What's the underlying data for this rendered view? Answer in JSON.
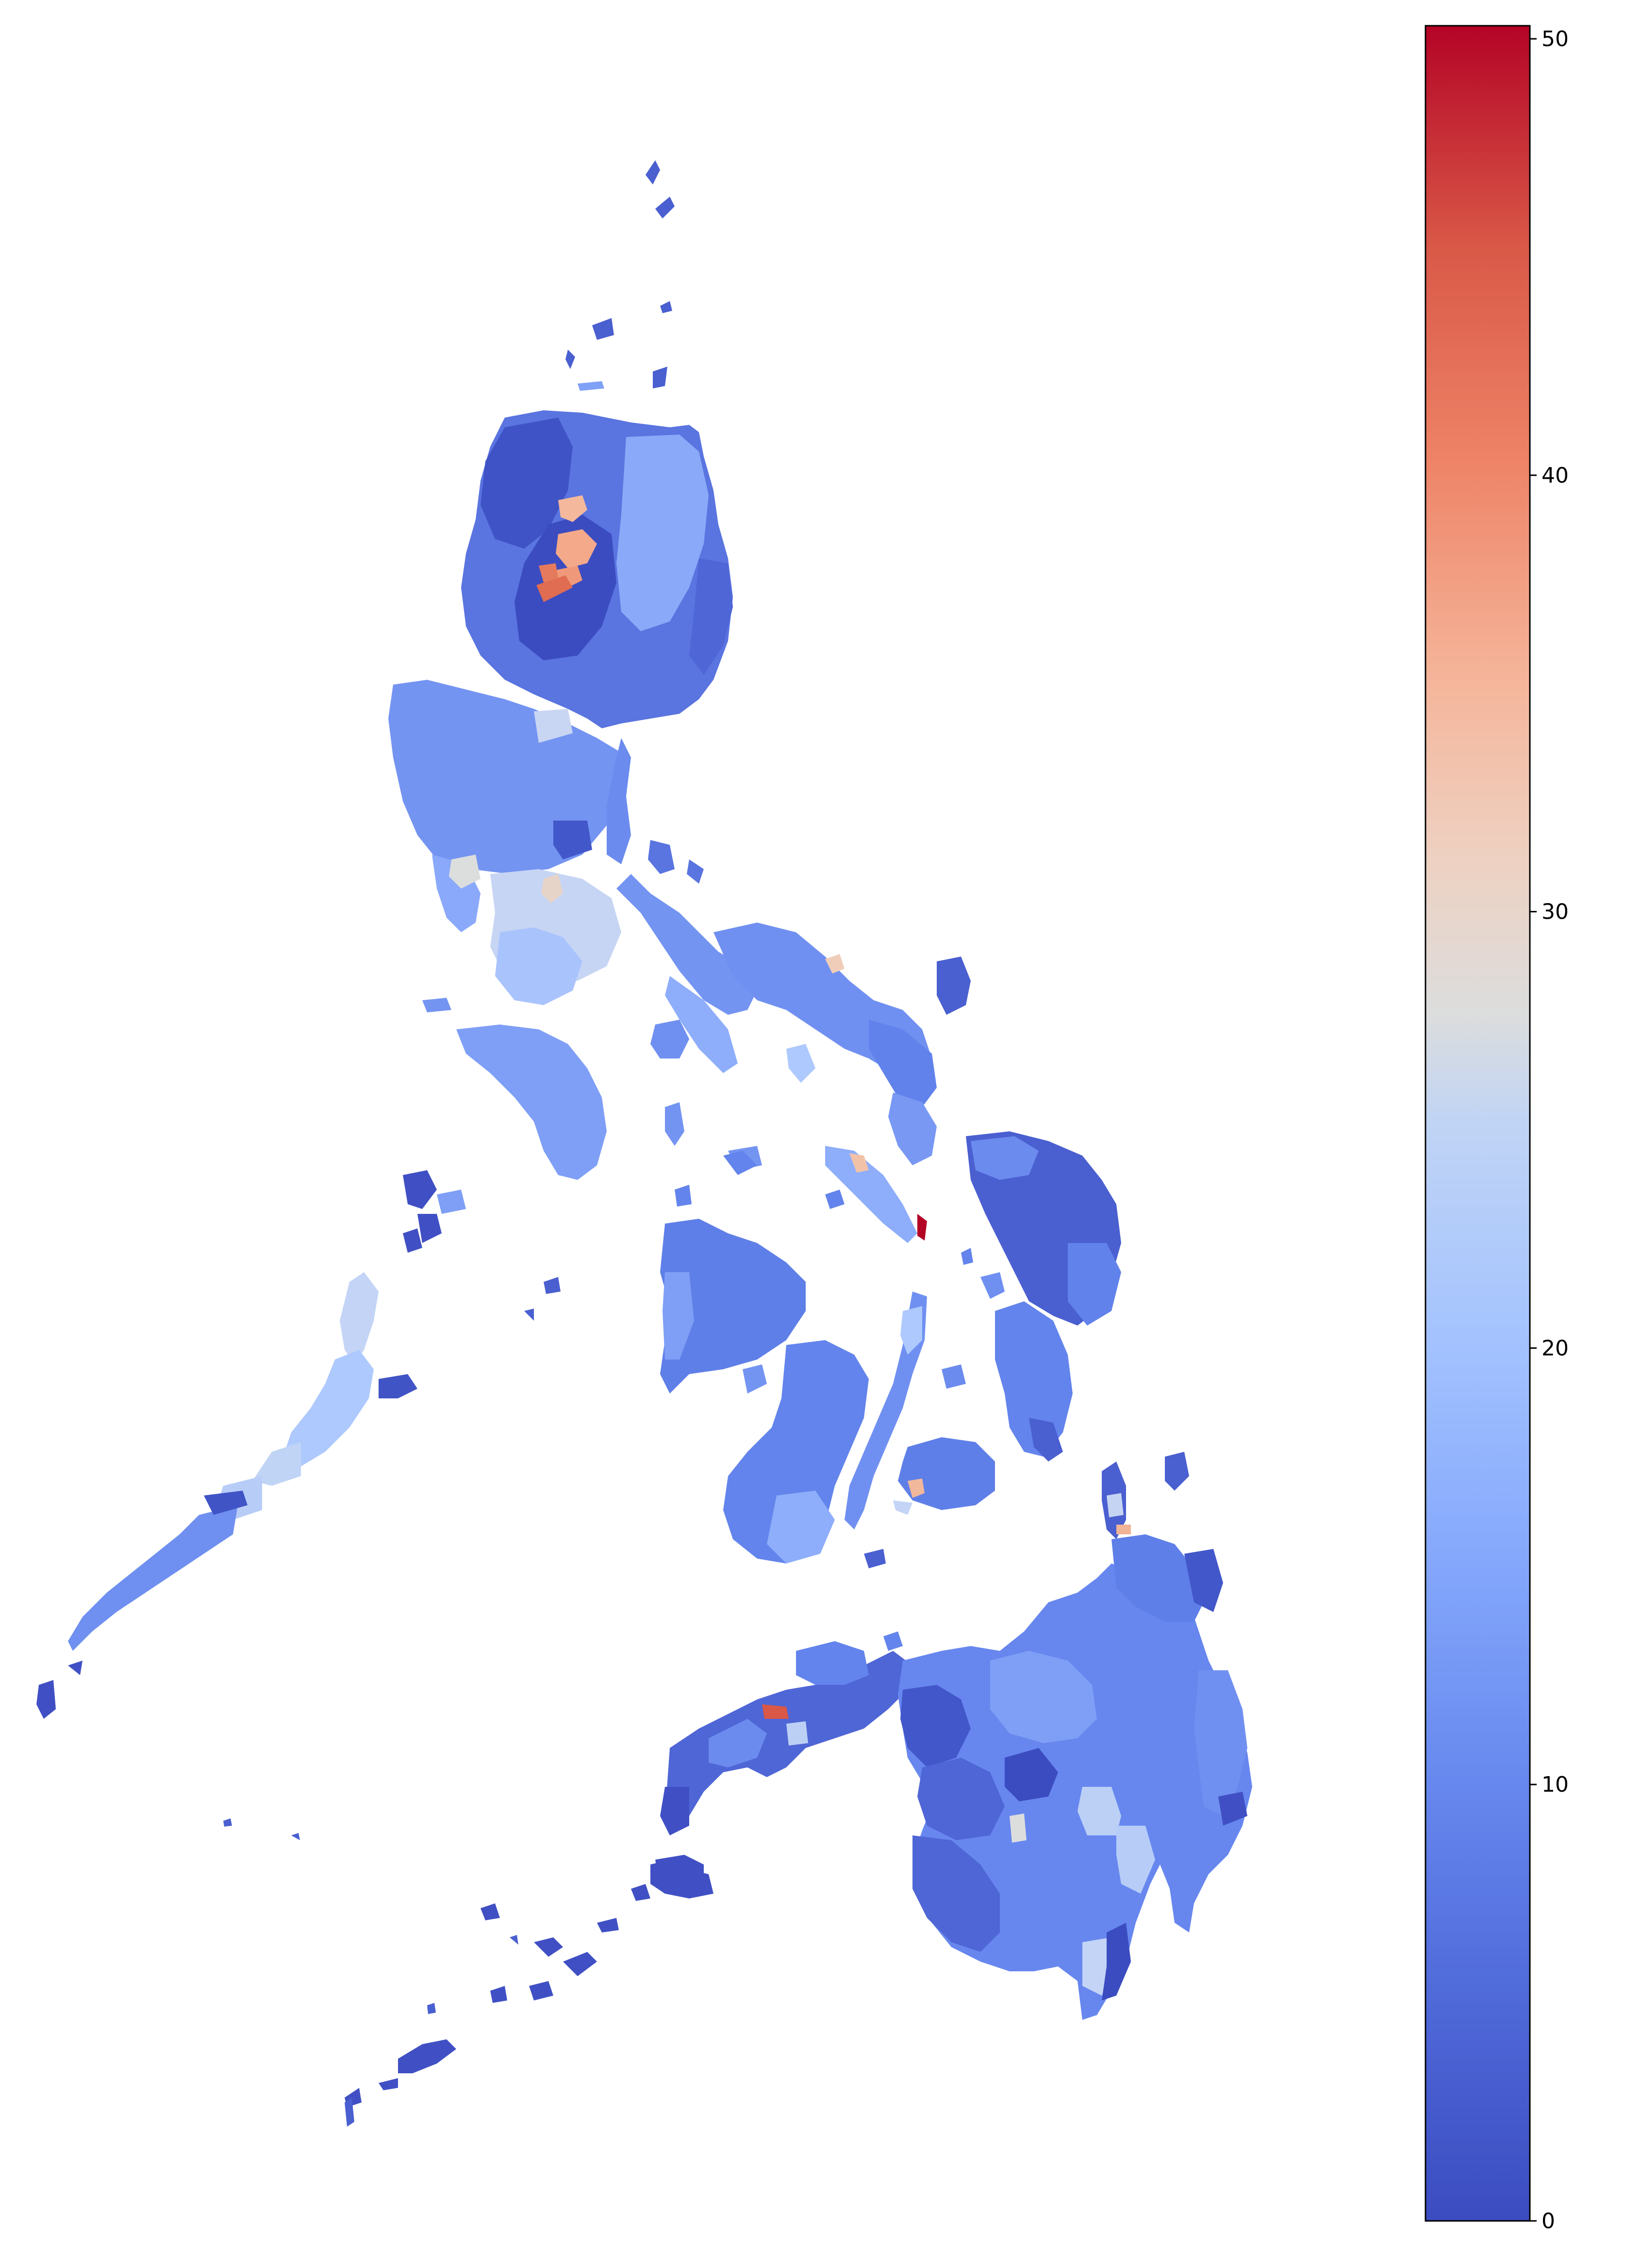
{
  "map": {
    "type": "choropleth",
    "region_unit": "municipality",
    "background": "#ffffff",
    "color_scale": {
      "name": "coolwarm",
      "min": 0,
      "max": 50,
      "stops": [
        {
          "value": 0,
          "color": "#3b4cc0"
        },
        {
          "value": 10,
          "color": "#6b8df0"
        },
        {
          "value": 20,
          "color": "#aac7fd"
        },
        {
          "value": 25,
          "color": "#dddddd"
        },
        {
          "value": 30,
          "color": "#f3c4ab"
        },
        {
          "value": 40,
          "color": "#ea7b60"
        },
        {
          "value": 50,
          "color": "#b40426"
        }
      ]
    },
    "highlight_regions": [
      {
        "area": "Cordillera (northern Luzon)",
        "value_approx": 36
      },
      {
        "area": "Cordillera lower area",
        "value_approx": 41
      },
      {
        "area": "central Luzon plain",
        "value_approx": 27
      },
      {
        "area": "Burias/Masbate strait area",
        "value_approx": 33
      },
      {
        "area": "eastern Masbate",
        "value_approx": 50
      },
      {
        "area": "Bohol",
        "value_approx": 34
      },
      {
        "area": "Zamboanga peninsula interior",
        "value_approx": 45
      },
      {
        "area": "Davao interior",
        "value_approx": 26
      }
    ]
  },
  "colorbar": {
    "orientation": "vertical",
    "ticks": [
      "0",
      "10",
      "20",
      "30",
      "40",
      "50"
    ],
    "tick_values": [
      0,
      10,
      20,
      30,
      40,
      50
    ],
    "min": 0,
    "max": 50.3
  }
}
